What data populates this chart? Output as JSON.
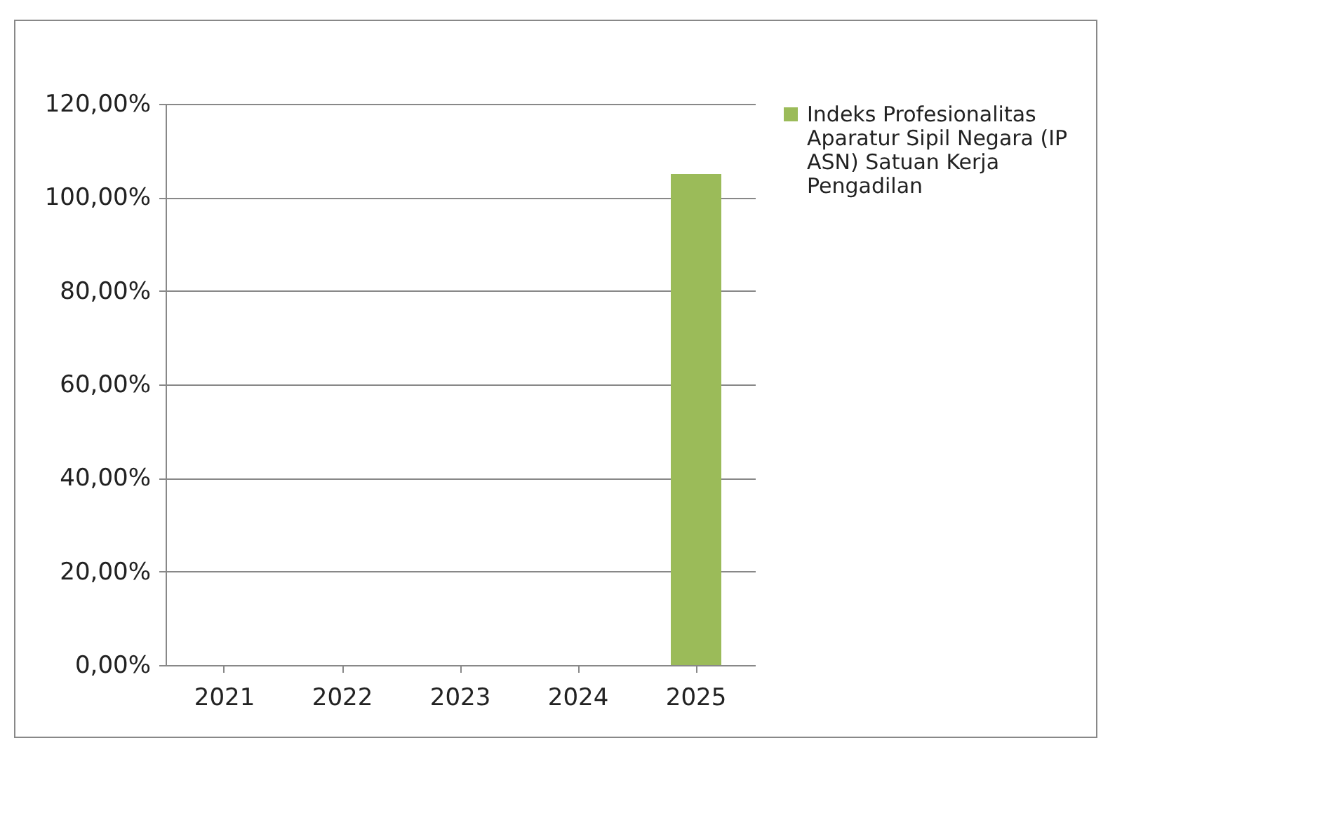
{
  "chart_data": {
    "type": "bar",
    "categories": [
      "2021",
      "2022",
      "2023",
      "2024",
      "2025"
    ],
    "series": [
      {
        "name": "Indeks Profesionalitas Aparatur Sipil Negara (IP ASN) Satuan Kerja Pengadilan",
        "color": "#9bbb59",
        "values": [
          0,
          0,
          0,
          0,
          105
        ]
      }
    ],
    "ylim": [
      0,
      120
    ],
    "yticks": [
      {
        "value": 0,
        "label": "0,00%"
      },
      {
        "value": 20,
        "label": "20,00%"
      },
      {
        "value": 40,
        "label": "40,00%"
      },
      {
        "value": 60,
        "label": "60,00%"
      },
      {
        "value": 80,
        "label": "80,00%"
      },
      {
        "value": 100,
        "label": "100,00%"
      },
      {
        "value": 120,
        "label": "120,00%"
      }
    ],
    "grid": "y",
    "legend": "right"
  }
}
